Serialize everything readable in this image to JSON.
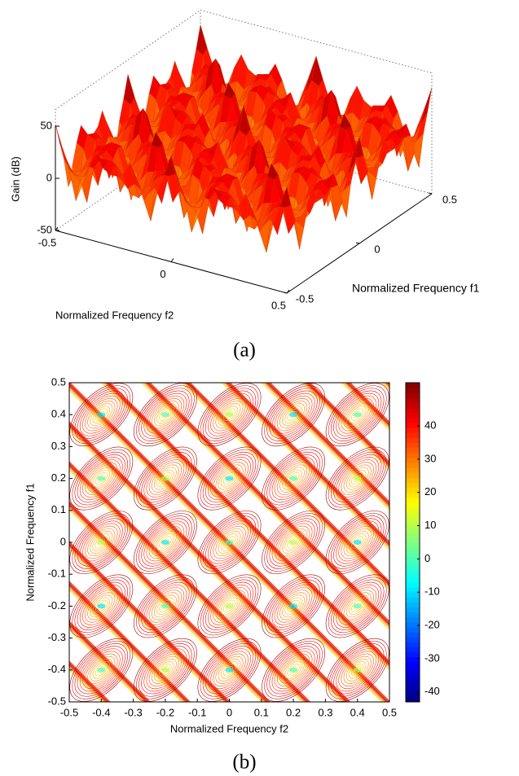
{
  "chart_data": [
    {
      "type": "surface3d",
      "caption": "(a)",
      "zlabel": "Gain (dB)",
      "xlabel": "Normalized Frequency f2",
      "ylabel": "Normalized Frequency f1",
      "xlim": [
        -0.5,
        0.5
      ],
      "xticks": [
        -0.5,
        0,
        0.5
      ],
      "ylim": [
        -0.5,
        0.5
      ],
      "yticks": [
        -0.5,
        0,
        0.5
      ],
      "zlim": [
        -50,
        50
      ],
      "zticks": [
        -50,
        0,
        50
      ],
      "colormap": "jet"
    },
    {
      "type": "contour",
      "caption": "(b)",
      "xlabel": "Normalized Frequency f2",
      "ylabel": "Normalized Frequency f1",
      "xlim": [
        -0.5,
        0.5
      ],
      "xticks": [
        -0.5,
        -0.4,
        -0.3,
        -0.2,
        -0.1,
        0,
        0.1,
        0.2,
        0.3,
        0.4,
        0.5
      ],
      "ylim": [
        -0.5,
        0.5
      ],
      "yticks": [
        -0.5,
        -0.4,
        -0.3,
        -0.2,
        -0.1,
        0,
        0.1,
        0.2,
        0.3,
        0.4,
        0.5
      ],
      "colorbar": {
        "lim": [
          -43,
          53
        ],
        "ticks": [
          -40,
          -30,
          -20,
          -10,
          0,
          10,
          20,
          30,
          40
        ]
      },
      "colormap": "jet"
    }
  ]
}
